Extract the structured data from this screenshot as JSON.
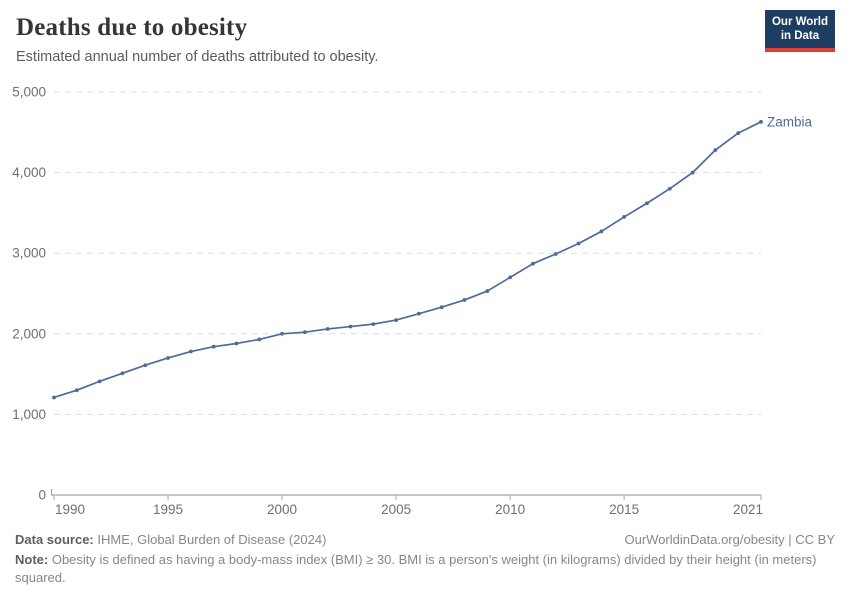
{
  "header": {
    "title": "Deaths due to obesity",
    "subtitle": "Estimated annual number of deaths attributed to obesity.",
    "logo": {
      "line1": "Our World",
      "line2": "in Data"
    }
  },
  "chart_data": {
    "type": "line",
    "title": "Deaths due to obesity",
    "subtitle": "Estimated annual number of deaths attributed to obesity.",
    "xlabel": "",
    "ylabel": "",
    "xlim": [
      1990,
      2021
    ],
    "ylim": [
      0,
      5000
    ],
    "x_ticks": [
      1990,
      1995,
      2000,
      2005,
      2010,
      2015,
      2021
    ],
    "y_ticks": [
      0,
      1000,
      2000,
      3000,
      4000,
      5000
    ],
    "grid": "horizontal-dashed",
    "legend_position": "end-of-line",
    "series": [
      {
        "name": "Zambia",
        "color": "#4c6a9c",
        "x": [
          1990,
          1991,
          1992,
          1993,
          1994,
          1995,
          1996,
          1997,
          1998,
          1999,
          2000,
          2001,
          2002,
          2003,
          2004,
          2005,
          2006,
          2007,
          2008,
          2009,
          2010,
          2011,
          2012,
          2013,
          2014,
          2015,
          2016,
          2017,
          2018,
          2019,
          2020,
          2021
        ],
        "values": [
          1210,
          1300,
          1410,
          1510,
          1610,
          1700,
          1780,
          1840,
          1880,
          1930,
          2000,
          2020,
          2060,
          2090,
          2120,
          2170,
          2250,
          2330,
          2420,
          2530,
          2700,
          2870,
          2990,
          3120,
          3270,
          3450,
          3620,
          3800,
          4000,
          4280,
          4490,
          4630
        ]
      }
    ]
  },
  "footer": {
    "data_source_label": "Data source:",
    "data_source": " IHME, Global Burden of Disease (2024)",
    "citation": "OurWorldinData.org/obesity | CC BY",
    "note_label": "Note:",
    "note": " Obesity is defined as having a body-mass index (BMI) ≥ 30. BMI is a person's weight (in kilograms) divided by their height (in meters) squared."
  },
  "colors": {
    "line": "#4c6a9c",
    "entity_label": "#4c6a9c",
    "grid": "#dddddd",
    "axis": "#a5a5a5",
    "tick_text": "#6f6f6f",
    "logo_bg": "#1d3d63",
    "logo_stripe": "#dd3f34"
  }
}
